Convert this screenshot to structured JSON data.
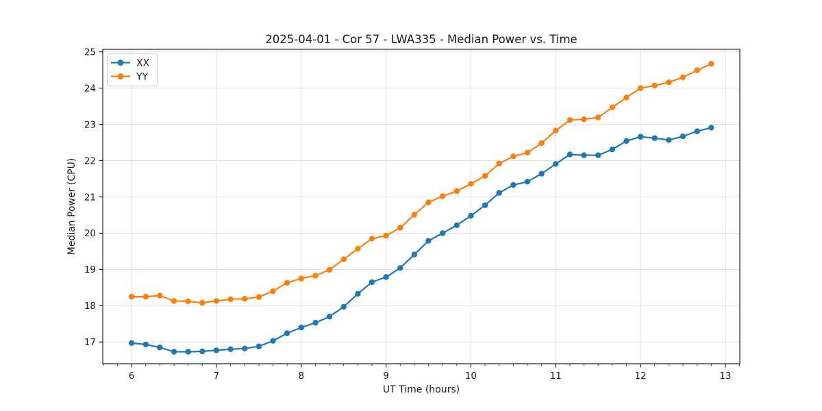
{
  "figure": {
    "background": "#ffffff"
  },
  "chart_data": {
    "type": "line",
    "title": "2025-04-01 - Cor 57 - LWA335 - Median Power vs. Time",
    "xlabel": "UT Time (hours)",
    "ylabel": "Median Power (CPU)",
    "xlim": [
      5.66,
      13.17
    ],
    "ylim": [
      16.4,
      25.07
    ],
    "xticks": [
      6,
      7,
      8,
      9,
      10,
      11,
      12,
      13
    ],
    "yticks": [
      17,
      18,
      19,
      20,
      21,
      22,
      23,
      24,
      25
    ],
    "x_minor_tick_interval_hours": 0.1667,
    "grid": "major-both",
    "legend_position": "upper-left",
    "x": [
      6.0,
      6.167,
      6.333,
      6.5,
      6.667,
      6.833,
      7.0,
      7.167,
      7.333,
      7.5,
      7.667,
      7.833,
      8.0,
      8.167,
      8.333,
      8.5,
      8.667,
      8.833,
      9.0,
      9.167,
      9.333,
      9.5,
      9.667,
      9.833,
      10.0,
      10.167,
      10.333,
      10.5,
      10.667,
      10.833,
      11.0,
      11.167,
      11.333,
      11.5,
      11.667,
      11.833,
      12.0,
      12.167,
      12.333,
      12.5,
      12.667,
      12.833
    ],
    "series": [
      {
        "name": "XX",
        "color": "#1f77b4",
        "marker": "circle",
        "values": [
          16.97,
          16.93,
          16.85,
          16.73,
          16.73,
          16.74,
          16.77,
          16.8,
          16.82,
          16.88,
          17.03,
          17.24,
          17.4,
          17.53,
          17.7,
          17.97,
          18.33,
          18.65,
          18.79,
          19.04,
          19.41,
          19.79,
          20.0,
          20.22,
          20.48,
          20.77,
          21.11,
          21.33,
          21.42,
          21.64,
          21.91,
          22.17,
          22.15,
          22.15,
          22.31,
          22.54,
          22.66,
          22.62,
          22.57,
          22.67,
          22.81,
          22.91
        ]
      },
      {
        "name": "YY",
        "color": "#ff7f0e",
        "marker": "circle",
        "values": [
          18.25,
          18.25,
          18.28,
          18.13,
          18.12,
          18.08,
          18.13,
          18.18,
          18.19,
          18.24,
          18.4,
          18.63,
          18.75,
          18.83,
          18.99,
          19.28,
          19.57,
          19.85,
          19.93,
          20.15,
          20.51,
          20.85,
          21.02,
          21.16,
          21.36,
          21.58,
          21.92,
          22.12,
          22.22,
          22.48,
          22.83,
          23.12,
          23.14,
          23.19,
          23.47,
          23.74,
          24.0,
          24.07,
          24.16,
          24.3,
          24.49,
          24.67
        ]
      }
    ]
  }
}
